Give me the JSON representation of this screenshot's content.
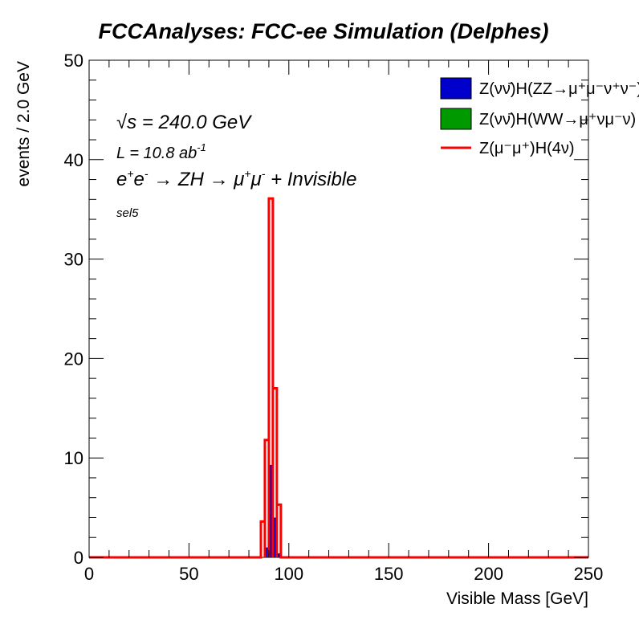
{
  "title": "FCCAnalyses: FCC-ee Simulation (Delphes)",
  "annotations": {
    "sqrt_s_prefix": "√s",
    "sqrt_s": " = 240.0 GeV",
    "lumi": "L = 10.8 ab",
    "lumi_exp": "-1",
    "process_e": "e",
    "process_plus": "+",
    "process_minus": "-",
    "process_mid": " → ZH → μ",
    "process_mu_plus": "+",
    "process_mu": "μ",
    "process_mu_minus": "-",
    "process_end": " + Invisible",
    "selection": "sel5"
  },
  "chart_data": {
    "type": "bar",
    "xlabel": "Visible Mass [GeV]",
    "ylabel": "events / 2.0 GeV",
    "xlim": [
      0,
      250
    ],
    "ylim": [
      0,
      50
    ],
    "x_ticks": [
      "0",
      "50",
      "100",
      "150",
      "200",
      "250"
    ],
    "y_ticks": [
      "0",
      "10",
      "20",
      "30",
      "40",
      "50"
    ],
    "bin_width": 2.0,
    "series": [
      {
        "name": "Z(νν̄)H(ZZ→μ⁺μ⁻ν⁺ν⁻)",
        "style": "filled-stack",
        "color": "#0000cc",
        "bins": [
          [
            88,
            1.0
          ],
          [
            90,
            9.3
          ],
          [
            92,
            4.0
          ],
          [
            94,
            0.4
          ]
        ]
      },
      {
        "name": "Z(νν̄)H(WW→μ⁺νμ⁻ν)",
        "style": "filled-stack",
        "color": "#009900",
        "bins": []
      },
      {
        "name": "Z(μ⁻μ⁺)H(4ν)",
        "style": "line",
        "color": "#ff0000",
        "bins": [
          [
            86,
            3.6
          ],
          [
            88,
            11.8
          ],
          [
            90,
            36.1
          ],
          [
            92,
            17.0
          ],
          [
            94,
            5.3
          ]
        ]
      }
    ],
    "legend_position": "top-right",
    "grid": false
  }
}
